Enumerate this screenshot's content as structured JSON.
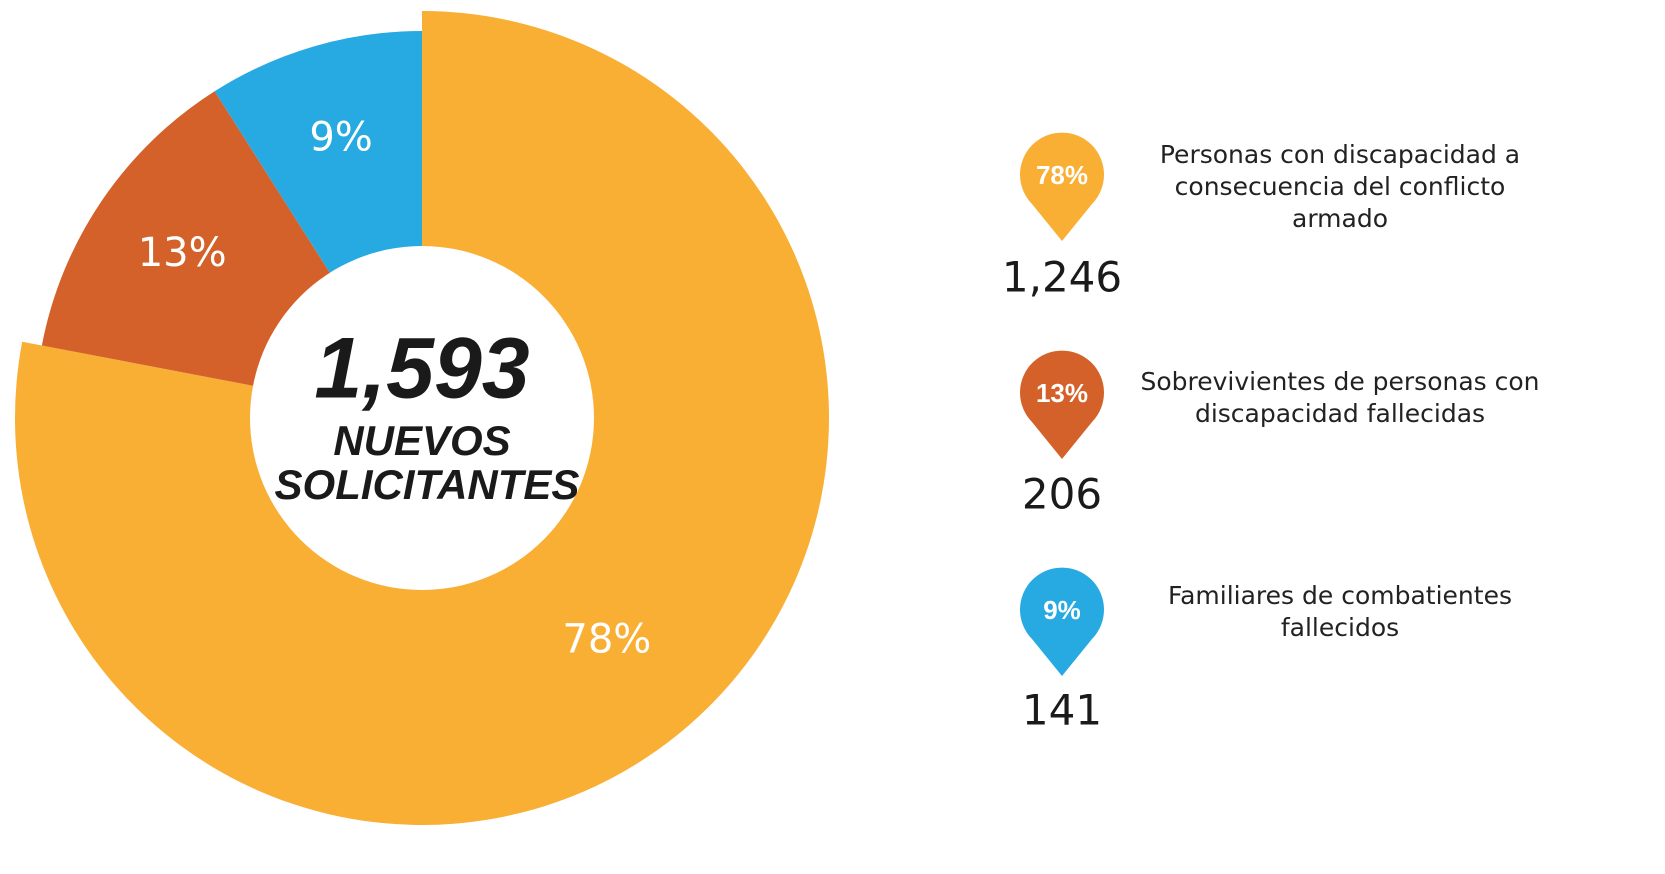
{
  "chart_data": {
    "type": "donut",
    "categories": [
      "Personas con discapacidad a consecuencia del conflicto armado",
      "Sobrevivientes de personas con discapacidad fallecidas",
      "Familiares de combatientes fallecidos"
    ],
    "values": [
      78,
      13,
      9
    ],
    "value_labels": [
      "78%",
      "13%",
      "9%"
    ],
    "colors": [
      "#f9ae34",
      "#d4612a",
      "#27a9e1"
    ],
    "count_labels": [
      "1,246",
      "206",
      "141"
    ],
    "total_label": "1,593",
    "center_lines": [
      "NUEVOS",
      "SOLICITANTES"
    ]
  }
}
